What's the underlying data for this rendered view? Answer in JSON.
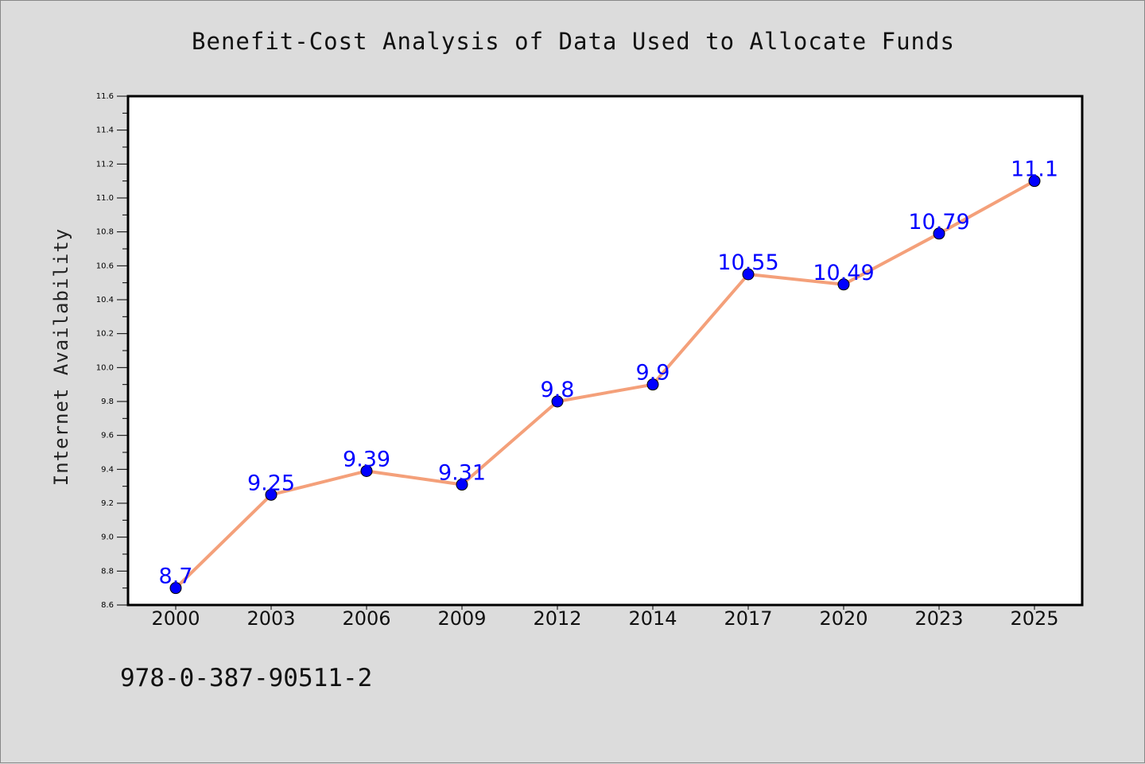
{
  "chart_data": {
    "type": "line",
    "title": "Benefit-Cost Analysis of Data Used to Allocate Funds",
    "xlabel": "",
    "ylabel": "Internet Availability",
    "categories": [
      "2000",
      "2003",
      "2006",
      "2009",
      "2012",
      "2014",
      "2017",
      "2020",
      "2023",
      "2025"
    ],
    "series": [
      {
        "values": [
          8.7,
          9.25,
          9.39,
          9.31,
          9.8,
          9.9,
          10.55,
          10.49,
          10.79,
          11.1
        ],
        "data_labels": [
          "8.7",
          "9.25",
          "9.39",
          "9.31",
          "9.8",
          "9.9",
          "10.55",
          "10.49",
          "10.79",
          "11.1"
        ],
        "line_color": "#f4a07a",
        "marker_color": "#0000ff"
      }
    ],
    "ylim": [
      8.6,
      11.6
    ],
    "yticks": [
      "8.6",
      "8.8",
      "9.0",
      "9.2",
      "9.4",
      "9.6",
      "9.8",
      "10.0",
      "10.2",
      "10.4",
      "10.6",
      "10.8",
      "11.0",
      "11.2",
      "11.4",
      "11.6"
    ],
    "grid": false,
    "legend": false
  },
  "footer": {
    "code": "978-0-387-90511-2"
  },
  "colors": {
    "background": "#dcdcdc",
    "plot_background": "#ffffff",
    "data_label": "#0000ff"
  }
}
